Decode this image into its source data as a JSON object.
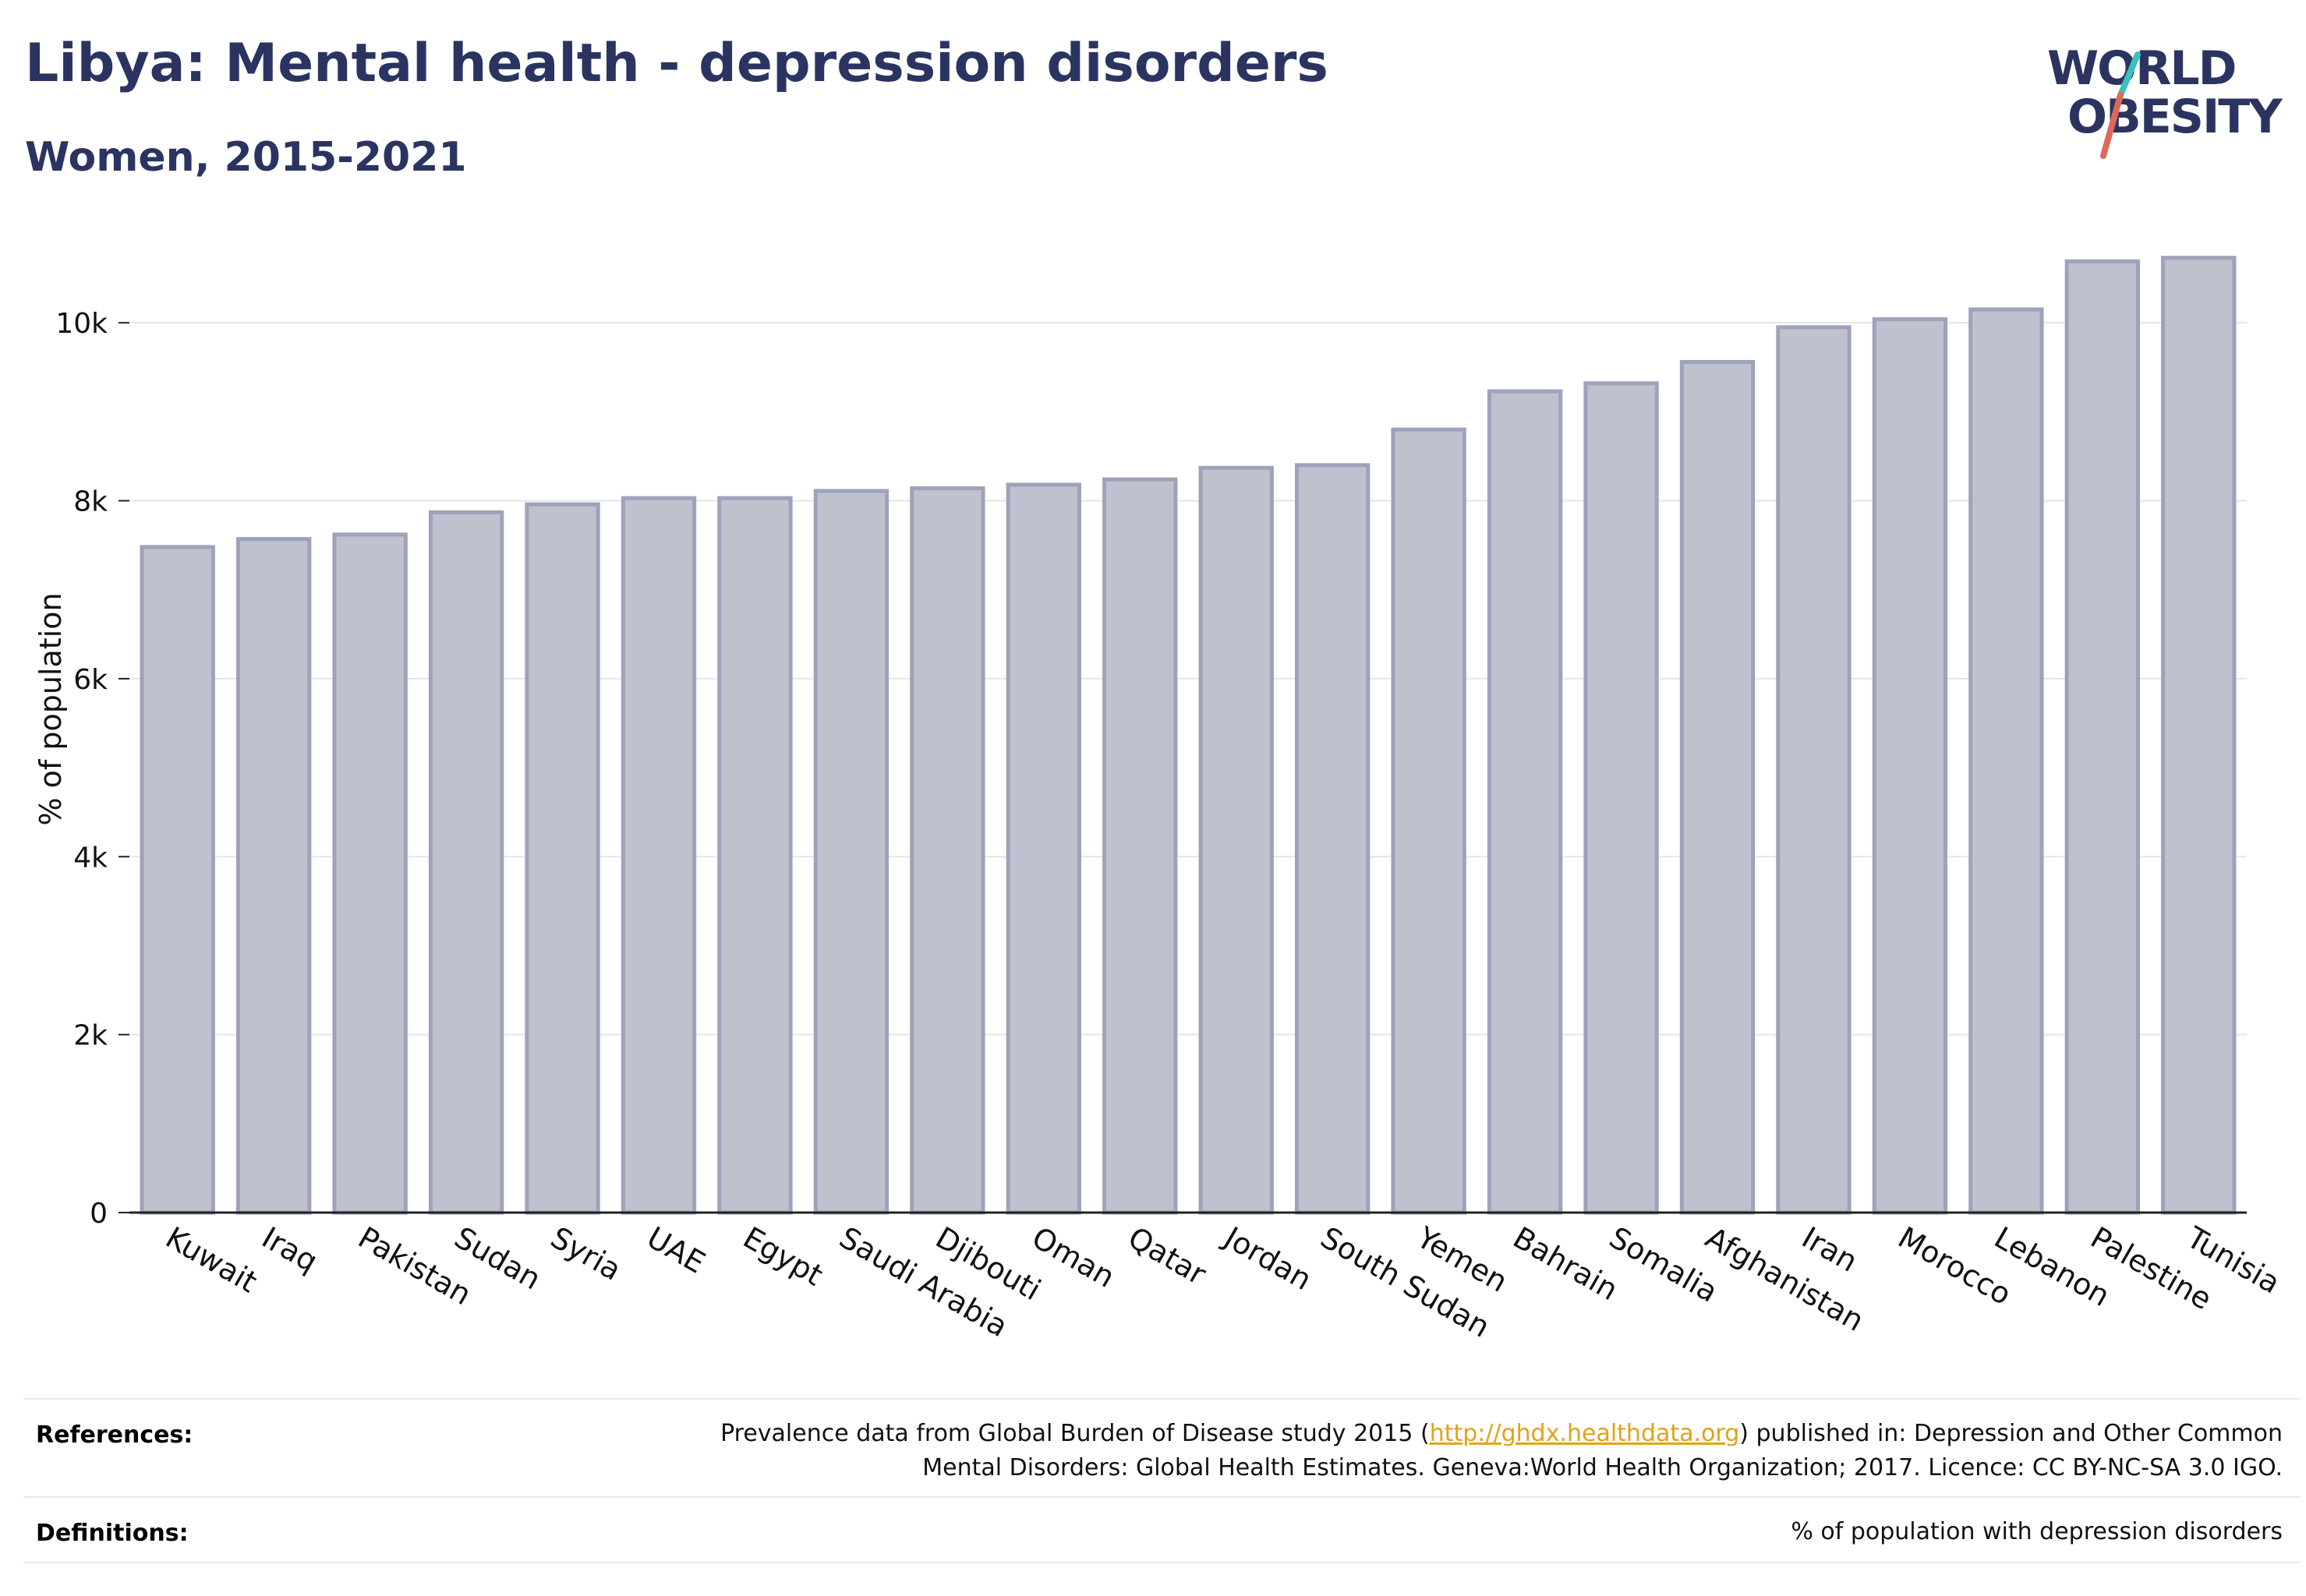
{
  "header": {
    "title": "Libya: Mental health - depression disorders",
    "subtitle": "Women, 2015-2021"
  },
  "logo": {
    "line1": "WORLD",
    "line2": "OBESITY",
    "text_color": "#2b3461",
    "slash_colors": [
      "#3bbfbf",
      "#e0685b"
    ]
  },
  "chart_data": {
    "type": "bar",
    "title": "Libya: Mental health - depression disorders",
    "subtitle": "Women, 2015-2021",
    "xlabel": "",
    "ylabel": "% of population",
    "ylim": [
      0,
      11000
    ],
    "yticks": [
      0,
      2000,
      4000,
      6000,
      8000,
      10000
    ],
    "ytick_labels": [
      "0",
      "2k",
      "4k",
      "6k",
      "8k",
      "10k"
    ],
    "grid": true,
    "bar_color": "#bfc1ce",
    "bar_edge_color": "#9ea2ba",
    "categories": [
      "Kuwait",
      "Iraq",
      "Pakistan",
      "Sudan",
      "Syria",
      "UAE",
      "Egypt",
      "Saudi Arabia",
      "Djibouti",
      "Oman",
      "Qatar",
      "Jordan",
      "South Sudan",
      "Yemen",
      "Bahrain",
      "Somalia",
      "Afghanistan",
      "Iran",
      "Morocco",
      "Lebanon",
      "Palestine",
      "Tunisia"
    ],
    "values": [
      7480,
      7570,
      7620,
      7870,
      7960,
      8030,
      8030,
      8110,
      8140,
      8180,
      8240,
      8370,
      8400,
      8800,
      9230,
      9320,
      9560,
      9950,
      10040,
      10150,
      10690,
      10730
    ]
  },
  "footer": {
    "references_label": "References:",
    "references_text_1": "Prevalence data from Global Burden of Disease study 2015 (",
    "references_link": "http://ghdx.healthdata.org",
    "references_text_2": ") published in: Depression and Other Common",
    "references_text_3": "Mental Disorders: Global Health Estimates. Geneva:World Health Organization; 2017. Licence: CC BY-NC-SA 3.0 IGO.",
    "definitions_label": "Definitions:",
    "definitions_text": "% of population with depression disorders"
  }
}
